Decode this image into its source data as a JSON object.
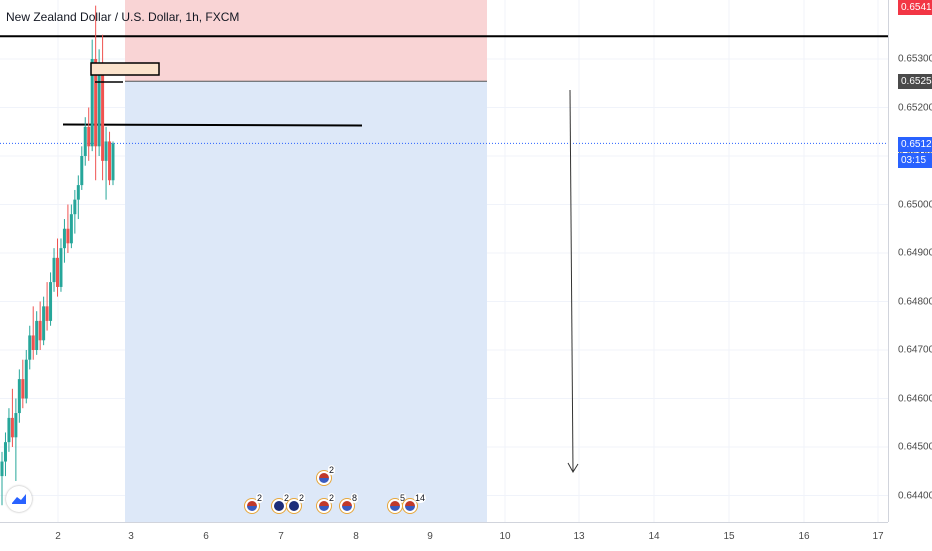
{
  "header": {
    "title": "New Zealand Dollar / U.S. Dollar, 1h, FXCM"
  },
  "colors": {
    "up": "#26a69a",
    "down": "#ef5350",
    "stop_zone": "#f9d4d5",
    "target_zone": "#dde8f8",
    "current_badge": "#2962ff",
    "entry_badge": "#4a4a4a",
    "top_badge": "#f23645"
  },
  "price_axis": {
    "ticks": [
      "0.65300",
      "0.65200",
      "0.65100",
      "0.65000",
      "0.64900",
      "0.64800",
      "0.64700",
      "0.64600",
      "0.64500",
      "0.64400"
    ],
    "top_label": "0.65416",
    "entry_label": "0.65254",
    "current_price_label": "0.65126",
    "countdown_label": "03:15"
  },
  "time_axis": {
    "ticks": [
      "2",
      "3",
      "6",
      "7",
      "8",
      "9",
      "10",
      "13",
      "14",
      "15",
      "16",
      "17"
    ]
  },
  "events": [
    {
      "count": "2",
      "flag": "us"
    },
    {
      "count": "2",
      "flag": "nz"
    },
    {
      "count": "2",
      "flag": "nz"
    },
    {
      "count": "2",
      "flag": "us"
    },
    {
      "count": "8",
      "flag": "us"
    },
    {
      "count": "5",
      "flag": "us"
    },
    {
      "count": "14",
      "flag": "us"
    }
  ],
  "chart_data": {
    "type": "candlestick",
    "title": "New Zealand Dollar / U.S. Dollar, 1h, FXCM",
    "symbol": "NZDUSD",
    "ylim": [
      0.6434,
      0.6544
    ],
    "current_price": 0.65126,
    "position": {
      "direction": "short",
      "entry": 0.65254,
      "stop": 0.65416,
      "target": 0.6434
    },
    "horizontal_lines": [
      0.65347,
      0.65165
    ],
    "candles": [
      [
        0.6444,
        0.6449,
        0.6438,
        0.6447
      ],
      [
        0.6447,
        0.6453,
        0.6444,
        0.6451
      ],
      [
        0.6451,
        0.6458,
        0.6449,
        0.6456
      ],
      [
        0.6456,
        0.6462,
        0.645,
        0.6452
      ],
      [
        0.6452,
        0.646,
        0.6443,
        0.6457
      ],
      [
        0.6457,
        0.6466,
        0.6455,
        0.6464
      ],
      [
        0.6464,
        0.6468,
        0.6458,
        0.646
      ],
      [
        0.646,
        0.647,
        0.6459,
        0.6468
      ],
      [
        0.6468,
        0.6475,
        0.6466,
        0.6473
      ],
      [
        0.6473,
        0.6479,
        0.6468,
        0.647
      ],
      [
        0.647,
        0.6478,
        0.6469,
        0.6476
      ],
      [
        0.6476,
        0.648,
        0.647,
        0.6472
      ],
      [
        0.6472,
        0.6481,
        0.6471,
        0.6479
      ],
      [
        0.6479,
        0.6484,
        0.6474,
        0.6476
      ],
      [
        0.6476,
        0.6486,
        0.6475,
        0.6484
      ],
      [
        0.6484,
        0.6491,
        0.6482,
        0.6489
      ],
      [
        0.6489,
        0.6493,
        0.6481,
        0.6483
      ],
      [
        0.6483,
        0.6493,
        0.6482,
        0.6491
      ],
      [
        0.6491,
        0.6497,
        0.6488,
        0.6495
      ],
      [
        0.6495,
        0.65,
        0.649,
        0.6492
      ],
      [
        0.6492,
        0.65,
        0.6491,
        0.6498
      ],
      [
        0.6498,
        0.6503,
        0.6494,
        0.6501
      ],
      [
        0.6501,
        0.6506,
        0.6497,
        0.6504
      ],
      [
        0.6504,
        0.6512,
        0.6503,
        0.651
      ],
      [
        0.651,
        0.6518,
        0.6508,
        0.6516
      ],
      [
        0.6516,
        0.652,
        0.6509,
        0.6512
      ],
      [
        0.6512,
        0.6534,
        0.6511,
        0.653
      ],
      [
        0.653,
        0.6541,
        0.6505,
        0.6512
      ],
      [
        0.6512,
        0.6532,
        0.651,
        0.6528
      ],
      [
        0.6528,
        0.6535,
        0.6505,
        0.6509
      ],
      [
        0.6509,
        0.6516,
        0.6501,
        0.6513
      ],
      [
        0.6513,
        0.6515,
        0.6504,
        0.6505
      ],
      [
        0.6505,
        0.6513,
        0.6504,
        0.65126
      ]
    ]
  }
}
